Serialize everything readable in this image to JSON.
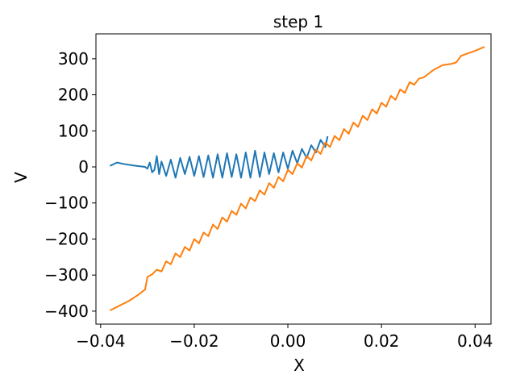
{
  "chart_data": {
    "type": "line",
    "title": "step 1",
    "x_label": "X",
    "y_label": "V",
    "xlim": [
      -0.041,
      0.0434
    ],
    "ylim": [
      -436,
      369
    ],
    "xticks": [
      {
        "value": -0.04,
        "label": "−0.04"
      },
      {
        "value": -0.02,
        "label": "−0.02"
      },
      {
        "value": 0,
        "label": "0.00"
      },
      0.02,
      0.04
    ],
    "yticks": [
      {
        "value": -400,
        "label": "−400"
      },
      {
        "value": -300,
        "label": "−300"
      },
      {
        "value": -200,
        "label": "−200"
      },
      {
        "value": -100,
        "label": "−100"
      },
      0,
      100,
      200,
      300
    ],
    "grid": false,
    "series": [
      {
        "color": "#1f77b4",
        "x": [
          -0.038,
          -0.0365,
          -0.035,
          -0.033,
          -0.0305,
          -0.03,
          -0.0295,
          -0.029,
          -0.0285,
          -0.028,
          -0.0275,
          -0.027,
          -0.026,
          -0.025,
          -0.024,
          -0.023,
          -0.022,
          -0.021,
          -0.02,
          -0.019,
          -0.018,
          -0.017,
          -0.016,
          -0.015,
          -0.014,
          -0.013,
          -0.012,
          -0.011,
          -0.01,
          -0.009,
          -0.008,
          -0.007,
          -0.006,
          -0.005,
          -0.004,
          -0.003,
          -0.002,
          -0.001,
          0,
          0.001,
          0.002,
          0.003,
          0.004,
          0.005,
          0.006,
          0.007,
          0.008,
          0.0085
        ],
        "values": [
          3,
          12,
          8,
          4,
          0,
          -5,
          12,
          -15,
          -8,
          30,
          -20,
          15,
          -25,
          20,
          -30,
          25,
          -20,
          28,
          -25,
          30,
          -28,
          32,
          -30,
          35,
          -30,
          38,
          -28,
          35,
          -30,
          40,
          -30,
          45,
          -28,
          40,
          -20,
          38,
          -15,
          40,
          -5,
          45,
          10,
          50,
          25,
          60,
          40,
          75,
          55,
          85
        ]
      },
      {
        "color": "#ff7f0e",
        "x": [
          -0.038,
          -0.036,
          -0.034,
          -0.032,
          -0.0305,
          -0.03,
          -0.029,
          -0.028,
          -0.027,
          -0.026,
          -0.025,
          -0.024,
          -0.023,
          -0.022,
          -0.021,
          -0.02,
          -0.019,
          -0.018,
          -0.017,
          -0.016,
          -0.015,
          -0.014,
          -0.013,
          -0.012,
          -0.011,
          -0.01,
          -0.009,
          -0.008,
          -0.007,
          -0.006,
          -0.005,
          -0.004,
          -0.003,
          -0.002,
          -0.001,
          0,
          0.001,
          0.002,
          0.003,
          0.004,
          0.005,
          0.006,
          0.007,
          0.008,
          0.009,
          0.01,
          0.011,
          0.012,
          0.013,
          0.014,
          0.015,
          0.016,
          0.017,
          0.018,
          0.019,
          0.02,
          0.021,
          0.022,
          0.023,
          0.024,
          0.025,
          0.026,
          0.027,
          0.028,
          0.029,
          0.03,
          0.031,
          0.032,
          0.033,
          0.034,
          0.035,
          0.036,
          0.037,
          0.038,
          0.04,
          0.042
        ],
        "values": [
          -398,
          -385,
          -372,
          -355,
          -340,
          -305,
          -298,
          -285,
          -290,
          -262,
          -270,
          -240,
          -250,
          -222,
          -232,
          -200,
          -212,
          -182,
          -192,
          -160,
          -172,
          -140,
          -152,
          -122,
          -133,
          -102,
          -115,
          -85,
          -95,
          -65,
          -77,
          -45,
          -58,
          -28,
          -40,
          -8,
          -20,
          10,
          -2,
          30,
          18,
          48,
          36,
          68,
          55,
          86,
          74,
          105,
          92,
          123,
          111,
          142,
          130,
          160,
          148,
          178,
          167,
          197,
          186,
          215,
          205,
          235,
          228,
          245,
          248,
          258,
          268,
          275,
          282,
          284,
          286,
          290,
          308,
          313,
          322,
          333
        ]
      }
    ]
  }
}
